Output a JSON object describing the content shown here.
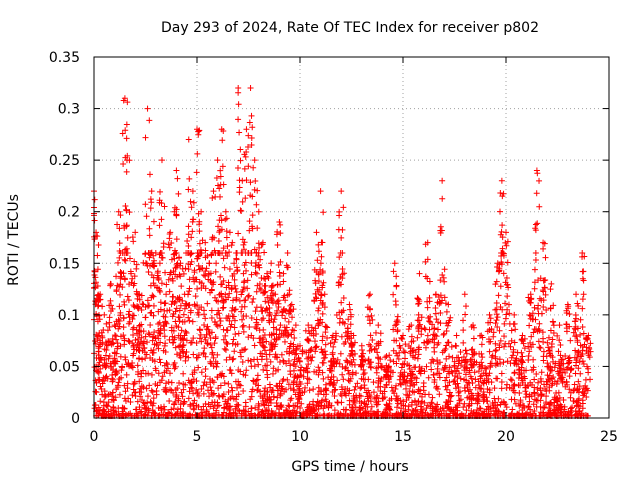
{
  "chart_data": {
    "type": "scatter",
    "title": "Day 293 of 2024, Rate Of TEC Index for receiver p802",
    "xlabel": "GPS time / hours",
    "ylabel": "ROTI / TECUs",
    "xlim": [
      0,
      25
    ],
    "ylim": [
      0,
      0.35
    ],
    "x_ticks": [
      0,
      5,
      10,
      15,
      20,
      25
    ],
    "y_ticks": [
      0,
      0.05,
      0.1,
      0.15,
      0.2,
      0.25,
      0.3,
      0.35
    ],
    "x_tick_labels": [
      "0",
      "5",
      "10",
      "15",
      "20",
      "25"
    ],
    "y_tick_labels": [
      "0",
      "0.05",
      "0.1",
      "0.15",
      "0.2",
      "0.25",
      "0.3",
      "0.35"
    ],
    "grid": true,
    "marker": "+",
    "color": "#ff0000",
    "series": [
      {
        "name": "ROTI",
        "x": [
          0.0,
          0.1,
          0.2,
          0.3,
          0.5,
          0.8,
          1.0,
          1.2,
          1.4,
          1.5,
          1.6,
          1.8,
          2.0,
          2.2,
          2.4,
          2.6,
          2.8,
          3.0,
          3.2,
          3.3,
          3.5,
          3.7,
          3.9,
          4.0,
          4.2,
          4.4,
          4.6,
          4.8,
          5.0,
          5.2,
          5.4,
          5.6,
          5.8,
          6.0,
          6.2,
          6.4,
          6.6,
          6.8,
          7.0,
          7.2,
          7.4,
          7.6,
          7.8,
          8.0,
          8.2,
          8.4,
          8.6,
          8.8,
          9.0,
          9.2,
          9.4,
          9.6,
          9.8,
          10.0,
          10.4,
          10.8,
          11.0,
          11.2,
          11.6,
          12.0,
          12.4,
          12.6,
          13.0,
          13.4,
          13.8,
          14.2,
          14.6,
          15.0,
          15.4,
          15.8,
          16.2,
          16.6,
          16.9,
          17.2,
          17.6,
          18.0,
          18.4,
          18.8,
          19.2,
          19.6,
          19.8,
          20.0,
          20.4,
          20.8,
          21.2,
          21.5,
          21.8,
          22.2,
          22.6,
          23.0,
          23.4,
          23.7,
          24.0
        ],
        "y": [
          0.22,
          0.18,
          0.08,
          0.12,
          0.1,
          0.13,
          0.09,
          0.2,
          0.16,
          0.31,
          0.25,
          0.14,
          0.18,
          0.12,
          0.11,
          0.3,
          0.22,
          0.16,
          0.15,
          0.25,
          0.12,
          0.18,
          0.2,
          0.24,
          0.15,
          0.12,
          0.27,
          0.22,
          0.28,
          0.2,
          0.17,
          0.15,
          0.22,
          0.25,
          0.28,
          0.2,
          0.18,
          0.15,
          0.32,
          0.23,
          0.28,
          0.32,
          0.25,
          0.2,
          0.17,
          0.14,
          0.15,
          0.12,
          0.19,
          0.14,
          0.16,
          0.11,
          0.09,
          0.07,
          0.09,
          0.18,
          0.22,
          0.12,
          0.08,
          0.22,
          0.11,
          0.08,
          0.07,
          0.12,
          0.09,
          0.06,
          0.15,
          0.08,
          0.09,
          0.14,
          0.17,
          0.12,
          0.23,
          0.11,
          0.08,
          0.12,
          0.09,
          0.08,
          0.1,
          0.15,
          0.23,
          0.18,
          0.1,
          0.08,
          0.12,
          0.24,
          0.17,
          0.13,
          0.09,
          0.11,
          0.12,
          0.16,
          0.08
        ],
        "base_density": {
          "note": "dense red '+' cloud below ~0.1 TECU for the whole day",
          "x_range": [
            0,
            24
          ],
          "y_range": [
            0,
            0.1
          ]
        }
      }
    ]
  }
}
